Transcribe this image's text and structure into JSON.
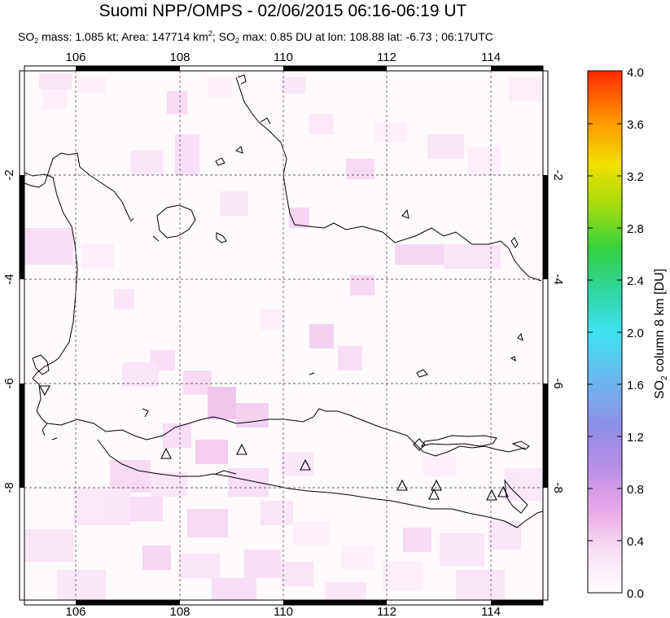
{
  "title": "Suomi NPP/OMPS - 02/06/2015 06:16-06:19 UT",
  "subtitle": {
    "so2_mass_label": "SO",
    "so2_mass_text": " mass: 1.085 kt; Area: 147714 km",
    "area_sup": "2",
    "so2_max_text": "; SO",
    "rest": " max: 0.85 DU at lon: 108.88 lat: -6.73 ; 06:17UTC",
    "sub2": "2"
  },
  "map": {
    "lon_ticks": [
      "106",
      "108",
      "110",
      "112",
      "114"
    ],
    "lat_ticks_left": [
      "-2",
      "-4",
      "-6",
      "-8"
    ],
    "lat_ticks_right": [
      "-2",
      "-4",
      "-6",
      "-8"
    ]
  },
  "colorbar": {
    "title": "SO",
    "title_sub": "2",
    "title_rest": " column 8 km [DU]",
    "labels": [
      "4.0",
      "3.6",
      "3.2",
      "2.8",
      "2.4",
      "2.0",
      "1.6",
      "1.2",
      "0.8",
      "0.4",
      "0.0"
    ],
    "colors": [
      "#ff2a00",
      "#ff8c00",
      "#ffd400",
      "#b8e000",
      "#3fcf3f",
      "#2fd6b4",
      "#39d9ee",
      "#7fb6ee",
      "#9b8fe6",
      "#cf9be6",
      "#f5c8ef",
      "#ffffff"
    ]
  },
  "volcanoes": [
    "volcano-1",
    "volcano-2",
    "volcano-3",
    "volcano-4",
    "volcano-5",
    "volcano-6",
    "volcano-7",
    "volcano-8",
    "volcano-9",
    "volcano-10"
  ]
}
